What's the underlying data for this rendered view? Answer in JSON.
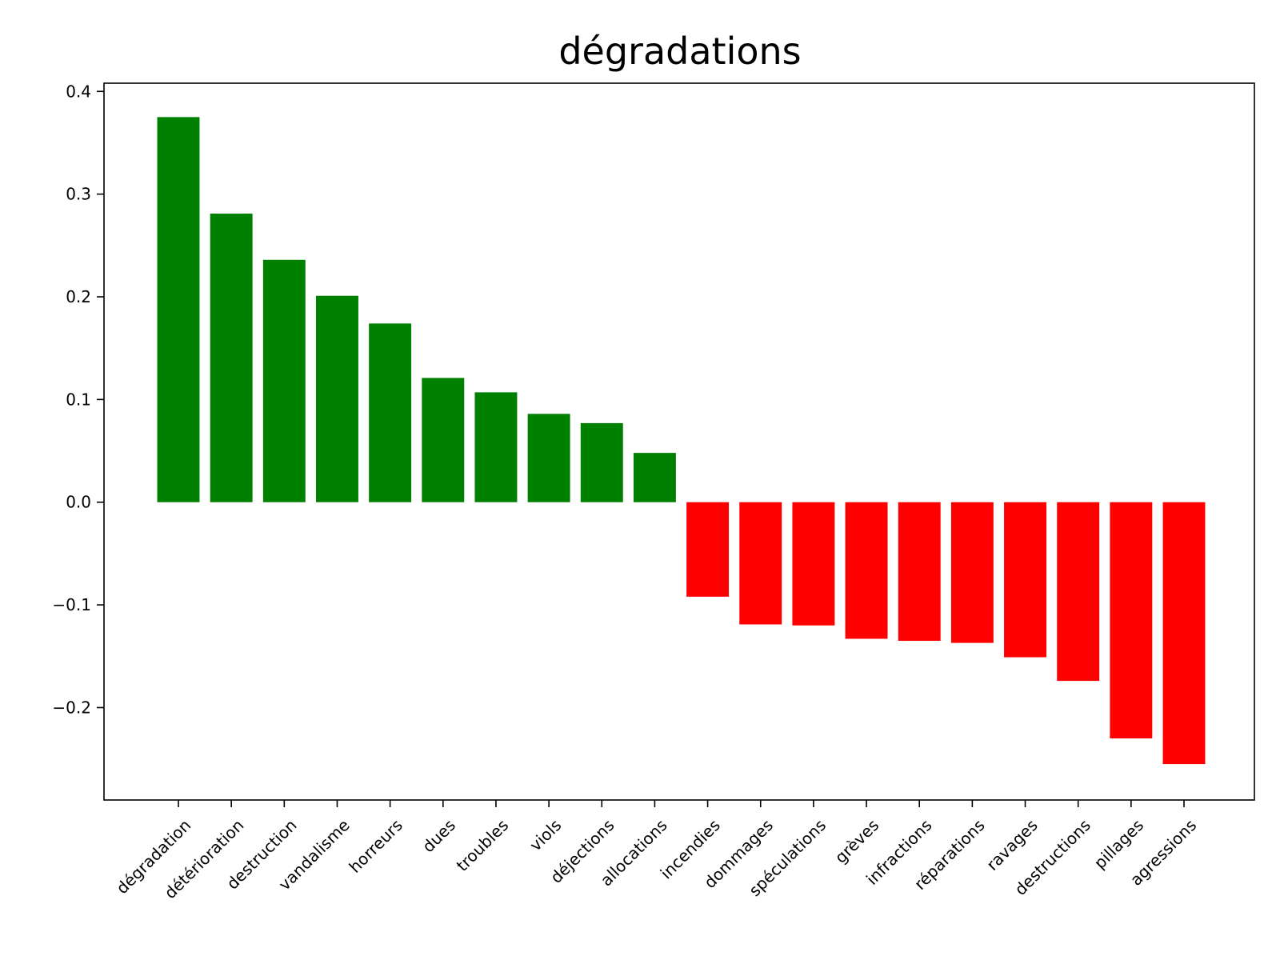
{
  "chart_data": {
    "type": "bar",
    "title": "dégradations",
    "xlabel": "",
    "ylabel": "",
    "ylim": [
      -0.29,
      0.408
    ],
    "yticks": [
      {
        "value": 0.4,
        "label": "0.4"
      },
      {
        "value": 0.3,
        "label": "0.3"
      },
      {
        "value": 0.2,
        "label": "0.2"
      },
      {
        "value": 0.1,
        "label": "0.1"
      },
      {
        "value": 0.0,
        "label": "0.0"
      },
      {
        "value": -0.1,
        "label": "−0.1"
      },
      {
        "value": -0.2,
        "label": "−0.2"
      }
    ],
    "categories": [
      "dégradation",
      "détérioration",
      "destruction",
      "vandalisme",
      "horreurs",
      "dues",
      "troubles",
      "viols",
      "déjections",
      "allocations",
      "incendies",
      "dommages",
      "spéculations",
      "grèves",
      "infractions",
      "réparations",
      "ravages",
      "destructions",
      "pillages",
      "agressions"
    ],
    "values": [
      0.375,
      0.281,
      0.236,
      0.201,
      0.174,
      0.121,
      0.107,
      0.086,
      0.077,
      0.048,
      -0.092,
      -0.119,
      -0.12,
      -0.133,
      -0.135,
      -0.137,
      -0.151,
      -0.174,
      -0.23,
      -0.255
    ],
    "colors": {
      "positive": "#008000",
      "negative": "#ff0000"
    },
    "grid": false,
    "legend": "none"
  }
}
